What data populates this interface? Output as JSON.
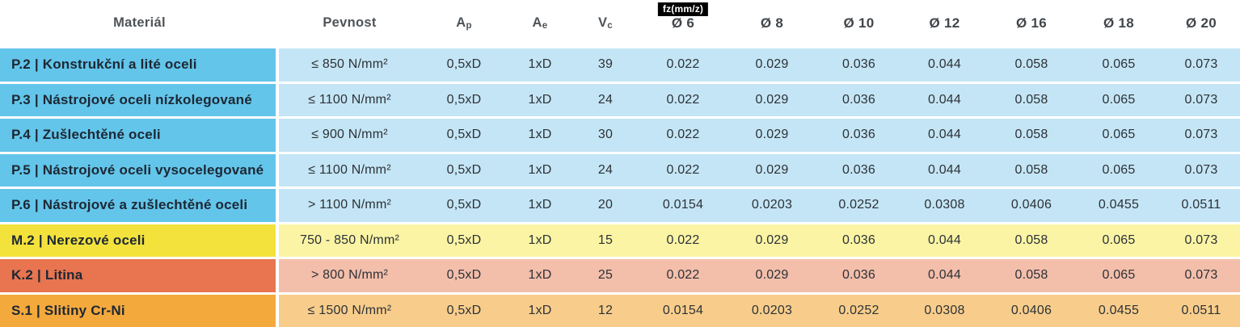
{
  "chart_data": {
    "type": "table",
    "title": "",
    "columns": [
      "Materiál",
      "Pevnost",
      "Ap",
      "Ae",
      "Vc",
      "fz(mm/z) Ø 6",
      "Ø 8",
      "Ø 10",
      "Ø 12",
      "Ø 16",
      "Ø 18",
      "Ø 20"
    ],
    "rows": [
      [
        "P.2 | Konstrukční a lité oceli",
        "≤ 850 N/mm²",
        "0,5xD",
        "1xD",
        "39",
        "0.022",
        "0.029",
        "0.036",
        "0.044",
        "0.058",
        "0.065",
        "0.073"
      ],
      [
        "P.3 | Nástrojové oceli nízkolegované",
        "≤ 1100 N/mm²",
        "0,5xD",
        "1xD",
        "24",
        "0.022",
        "0.029",
        "0.036",
        "0.044",
        "0.058",
        "0.065",
        "0.073"
      ],
      [
        "P.4 | Zušlechtěné oceli",
        "≤ 900 N/mm²",
        "0,5xD",
        "1xD",
        "30",
        "0.022",
        "0.029",
        "0.036",
        "0.044",
        "0.058",
        "0.065",
        "0.073"
      ],
      [
        "P.5 | Nástrojové oceli vysocelegované",
        "≤ 1100 N/mm²",
        "0,5xD",
        "1xD",
        "24",
        "0.022",
        "0.029",
        "0.036",
        "0.044",
        "0.058",
        "0.065",
        "0.073"
      ],
      [
        "P.6 | Nástrojové a zušlechtěné oceli",
        "> 1100 N/mm²",
        "0,5xD",
        "1xD",
        "20",
        "0.0154",
        "0.0203",
        "0.0252",
        "0.0308",
        "0.0406",
        "0.0455",
        "0.0511"
      ],
      [
        "M.2 | Nerezové oceli",
        "750 - 850 N/mm²",
        "0,5xD",
        "1xD",
        "15",
        "0.022",
        "0.029",
        "0.036",
        "0.044",
        "0.058",
        "0.065",
        "0.073"
      ],
      [
        "K.2 | Litina",
        "> 800 N/mm²",
        "0,5xD",
        "1xD",
        "25",
        "0.022",
        "0.029",
        "0.036",
        "0.044",
        "0.058",
        "0.065",
        "0.073"
      ],
      [
        "S.1 | Slitiny Cr-Ni",
        "≤ 1500 N/mm²",
        "0,5xD",
        "1xD",
        "12",
        "0.0154",
        "0.0203",
        "0.0252",
        "0.0308",
        "0.0406",
        "0.0455",
        "0.0511"
      ]
    ]
  },
  "headers": {
    "material": "Materiál",
    "pevnost": "Pevnost",
    "ap_base": "A",
    "ap_sub": "p",
    "ae_base": "A",
    "ae_sub": "e",
    "vc_base": "V",
    "vc_sub": "c",
    "fz_badge": "fz(mm/z)",
    "diameters": [
      "Ø 6",
      "Ø 8",
      "Ø 10",
      "Ø 12",
      "Ø 16",
      "Ø 18",
      "Ø 20"
    ]
  },
  "row_groups": [
    "P",
    "P",
    "P",
    "P",
    "P",
    "M",
    "K",
    "S"
  ],
  "colors": {
    "P": {
      "strong": "#63c5ea",
      "light": "#c4e5f5"
    },
    "M": {
      "strong": "#f3e23c",
      "light": "#faf4a4"
    },
    "K": {
      "strong": "#e87450",
      "light": "#f3beaa"
    },
    "S": {
      "strong": "#f4a93c",
      "light": "#f8cd8b"
    },
    "badge_bg": "#000000",
    "badge_fg": "#ffffff",
    "gap": "#ffffff"
  }
}
